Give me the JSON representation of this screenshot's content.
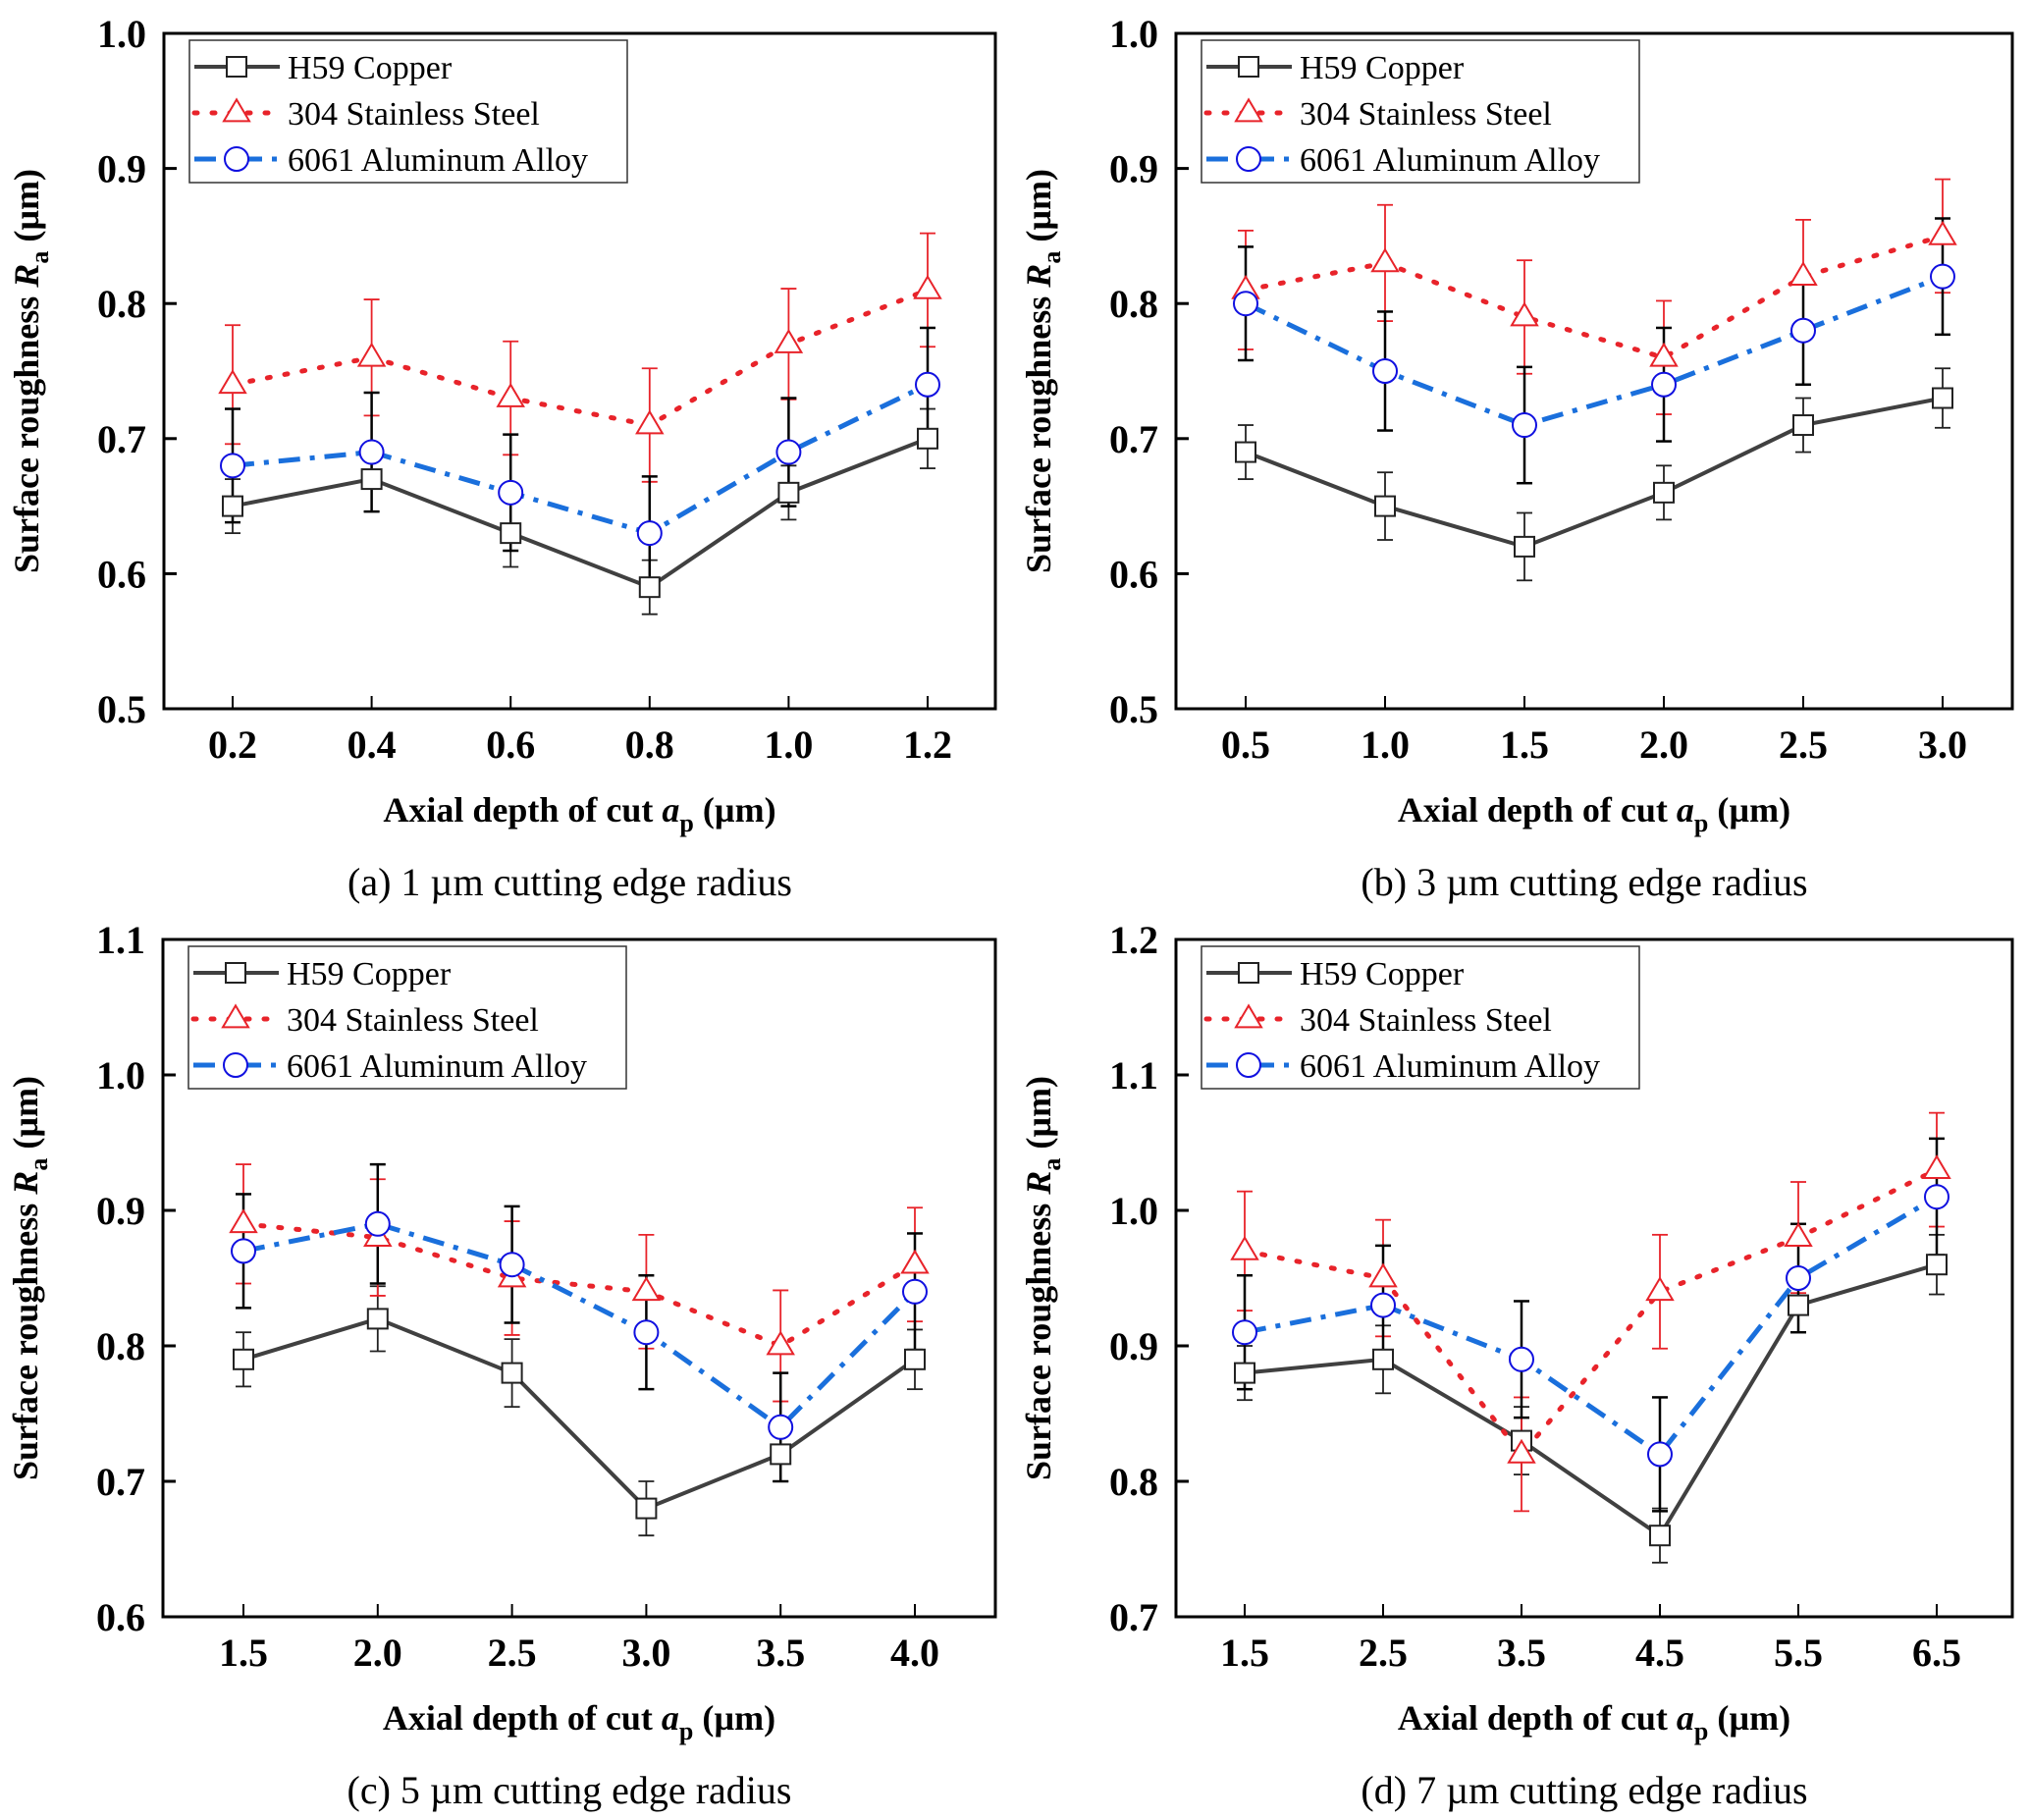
{
  "figure": {
    "colors": {
      "copper_line": "#404040",
      "copper_marker": "#222222",
      "steel": "#e8232a",
      "aluminum_line": "#1a6fdc",
      "aluminum_marker": "#1010e0",
      "copper_err": "#222222",
      "steel_err": "#e8232a",
      "aluminum_err": "#000000"
    }
  },
  "chart_data": [
    {
      "type": "line",
      "panel": "a",
      "caption": "(a) 1 µm cutting edge radius",
      "xlabel": "Axial depth of cut a_p (µm)",
      "xlabel_parts": {
        "pre": "Axial depth of cut ",
        "italic": "a",
        "sub": "p",
        "post": " (µm)"
      },
      "ylabel": "Surface roughness R_a (µm)",
      "ylabel_parts": {
        "pre": "Surface roughness ",
        "italic": "R",
        "sub": "a",
        "post": " (µm)"
      },
      "x": [
        0.2,
        0.4,
        0.6,
        0.8,
        1.0,
        1.2
      ],
      "x_tick_labels": [
        "0.2",
        "0.4",
        "0.6",
        "0.8",
        "1.0",
        "1.2"
      ],
      "xlim": [
        0.1,
        1.3
      ],
      "ylim": [
        0.5,
        1.0
      ],
      "y_ticks": [
        0.5,
        0.6,
        0.7,
        0.8,
        0.9,
        1.0
      ],
      "y_tick_labels": [
        "0.5",
        "0.6",
        "0.7",
        "0.8",
        "0.9",
        "1.0"
      ],
      "legend": "top-left",
      "grid": false,
      "series": [
        {
          "name": "H59 Copper",
          "key": "copper",
          "marker": "square",
          "line": "solid",
          "values": [
            0.65,
            0.67,
            0.63,
            0.59,
            0.66,
            0.7
          ],
          "errors": [
            0.02,
            0.024,
            0.025,
            0.02,
            0.02,
            0.022
          ]
        },
        {
          "name": "304 Stainless Steel",
          "key": "steel",
          "marker": "triangle",
          "line": "dotted",
          "values": [
            0.74,
            0.76,
            0.73,
            0.71,
            0.77,
            0.81
          ],
          "errors": [
            0.044,
            0.043,
            0.042,
            0.042,
            0.041,
            0.042
          ]
        },
        {
          "name": "6061 Aluminum Alloy",
          "key": "aluminum",
          "marker": "circle",
          "line": "dashdot",
          "values": [
            0.68,
            0.69,
            0.66,
            0.63,
            0.69,
            0.74
          ],
          "errors": [
            0.042,
            0.044,
            0.043,
            0.042,
            0.04,
            0.042
          ]
        }
      ]
    },
    {
      "type": "line",
      "panel": "b",
      "caption": "(b) 3 µm cutting edge radius",
      "xlabel": "Axial depth of cut a_p (µm)",
      "xlabel_parts": {
        "pre": "Axial depth of cut ",
        "italic": "a",
        "sub": "p",
        "post": " (µm)"
      },
      "ylabel": "Surface roughness R_a (µm)",
      "ylabel_parts": {
        "pre": "Surface roughness ",
        "italic": "R",
        "sub": "a",
        "post": " (µm)"
      },
      "x": [
        0.5,
        1.0,
        1.5,
        2.0,
        2.5,
        3.0
      ],
      "x_tick_labels": [
        "0.5",
        "1.0",
        "1.5",
        "2.0",
        "2.5",
        "3.0"
      ],
      "xlim": [
        0.25,
        3.25
      ],
      "ylim": [
        0.5,
        1.0
      ],
      "y_ticks": [
        0.5,
        0.6,
        0.7,
        0.8,
        0.9,
        1.0
      ],
      "y_tick_labels": [
        "0.5",
        "0.6",
        "0.7",
        "0.8",
        "0.9",
        "1.0"
      ],
      "legend": "top-left",
      "grid": false,
      "series": [
        {
          "name": "H59 Copper",
          "key": "copper",
          "marker": "square",
          "line": "solid",
          "values": [
            0.69,
            0.65,
            0.62,
            0.66,
            0.71,
            0.73
          ],
          "errors": [
            0.02,
            0.025,
            0.025,
            0.02,
            0.02,
            0.022
          ]
        },
        {
          "name": "304 Stainless Steel",
          "key": "steel",
          "marker": "triangle",
          "line": "dotted",
          "values": [
            0.81,
            0.83,
            0.79,
            0.76,
            0.82,
            0.85
          ],
          "errors": [
            0.044,
            0.043,
            0.042,
            0.042,
            0.042,
            0.042
          ]
        },
        {
          "name": "6061 Aluminum Alloy",
          "key": "aluminum",
          "marker": "circle",
          "line": "dashdot",
          "values": [
            0.8,
            0.75,
            0.71,
            0.74,
            0.78,
            0.82
          ],
          "errors": [
            0.042,
            0.044,
            0.043,
            0.042,
            0.04,
            0.043
          ]
        }
      ]
    },
    {
      "type": "line",
      "panel": "c",
      "caption": "(c) 5 µm cutting edge radius",
      "xlabel": "Axial depth of cut a_p (µm)",
      "xlabel_parts": {
        "pre": "Axial depth of cut ",
        "italic": "a",
        "sub": "p",
        "post": " (µm)"
      },
      "ylabel": "Surface roughness R_a (µm)",
      "ylabel_parts": {
        "pre": "Surface roughness ",
        "italic": "R",
        "sub": "a",
        "post": " (µm)"
      },
      "x": [
        1.5,
        2.0,
        2.5,
        3.0,
        3.5,
        4.0
      ],
      "x_tick_labels": [
        "1.5",
        "2.0",
        "2.5",
        "3.0",
        "3.5",
        "4.0"
      ],
      "xlim": [
        1.03,
        4.25
      ],
      "ylim": [
        0.6,
        1.1
      ],
      "y_ticks": [
        0.6,
        0.7,
        0.8,
        0.9,
        1.0,
        1.1
      ],
      "y_tick_labels": [
        "0.6",
        "0.7",
        "0.8",
        "0.9",
        "1.0",
        "1.1"
      ],
      "legend": "top-left",
      "grid": false,
      "series": [
        {
          "name": "H59 Copper",
          "key": "copper",
          "marker": "square",
          "line": "solid",
          "values": [
            0.79,
            0.82,
            0.78,
            0.68,
            0.72,
            0.79
          ],
          "errors": [
            0.02,
            0.024,
            0.025,
            0.02,
            0.02,
            0.022
          ]
        },
        {
          "name": "304 Stainless Steel",
          "key": "steel",
          "marker": "triangle",
          "line": "dotted",
          "values": [
            0.89,
            0.88,
            0.85,
            0.84,
            0.8,
            0.86
          ],
          "errors": [
            0.044,
            0.043,
            0.042,
            0.042,
            0.041,
            0.042
          ]
        },
        {
          "name": "6061 Aluminum Alloy",
          "key": "aluminum",
          "marker": "circle",
          "line": "dashdot",
          "values": [
            0.87,
            0.89,
            0.86,
            0.81,
            0.74,
            0.84
          ],
          "errors": [
            0.042,
            0.044,
            0.043,
            0.042,
            0.04,
            0.043
          ]
        }
      ]
    },
    {
      "type": "line",
      "panel": "d",
      "caption": "(d) 7 µm cutting edge radius",
      "xlabel": "Axial depth of cut a_p (µm)",
      "xlabel_parts": {
        "pre": "Axial depth of cut ",
        "italic": "a",
        "sub": "p",
        "post": " (µm)"
      },
      "ylabel": "Surface roughness R_a (µm)",
      "ylabel_parts": {
        "pre": "Surface roughness ",
        "italic": "R",
        "sub": "a",
        "post": " (µm)"
      },
      "x": [
        1.5,
        2.5,
        3.5,
        4.5,
        5.5,
        6.5
      ],
      "x_tick_labels": [
        "1.5",
        "2.5",
        "3.5",
        "4.5",
        "5.5",
        "6.5"
      ],
      "xlim": [
        1.0,
        7.0
      ],
      "ylim": [
        0.7,
        1.2
      ],
      "y_ticks": [
        0.7,
        0.8,
        0.9,
        1.0,
        1.1,
        1.2
      ],
      "y_tick_labels": [
        "0.7",
        "0.8",
        "0.9",
        "1.0",
        "1.1",
        "1.2"
      ],
      "legend": "top-left",
      "grid": false,
      "series": [
        {
          "name": "H59 Copper",
          "key": "copper",
          "marker": "square",
          "line": "solid",
          "values": [
            0.88,
            0.89,
            0.83,
            0.76,
            0.93,
            0.96
          ],
          "errors": [
            0.02,
            0.025,
            0.025,
            0.02,
            0.02,
            0.022
          ]
        },
        {
          "name": "304 Stainless Steel",
          "key": "steel",
          "marker": "triangle",
          "line": "dotted",
          "values": [
            0.97,
            0.95,
            0.82,
            0.94,
            0.98,
            1.03
          ],
          "errors": [
            0.044,
            0.043,
            0.042,
            0.042,
            0.041,
            0.042
          ]
        },
        {
          "name": "6061 Aluminum Alloy",
          "key": "aluminum",
          "marker": "circle",
          "line": "dashdot",
          "values": [
            0.91,
            0.93,
            0.89,
            0.82,
            0.95,
            1.01
          ],
          "errors": [
            0.042,
            0.044,
            0.043,
            0.042,
            0.04,
            0.043
          ]
        }
      ]
    }
  ]
}
